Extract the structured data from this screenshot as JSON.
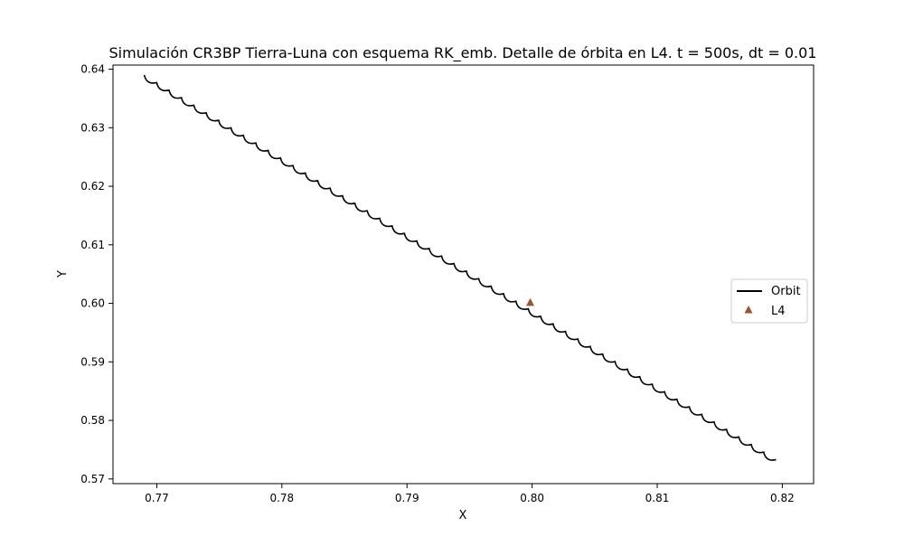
{
  "chart_data": {
    "type": "line",
    "title": "Simulación CR3BP Tierra-Luna con esquema RK_emb. Detalle de órbita en L4. t = 500s, dt = 0.01",
    "xlabel": "X",
    "ylabel": "Y",
    "xlim": [
      0.7665,
      0.8225
    ],
    "ylim": [
      0.5692,
      0.6407
    ],
    "xticks": [
      0.77,
      0.78,
      0.79,
      0.8,
      0.81,
      0.82
    ],
    "yticks": [
      0.57,
      0.58,
      0.59,
      0.6,
      0.61,
      0.62,
      0.63,
      0.64
    ],
    "grid": false,
    "legend_position": "center-right",
    "series": [
      {
        "name": "Orbit",
        "color": "#000000",
        "marker": "none",
        "path": {
          "start": [
            0.769,
            0.639
          ],
          "end": [
            0.8195,
            0.5733
          ],
          "arcs": 51,
          "arc_depth": 0.0008
        }
      },
      {
        "name": "L4",
        "color": "#a0522d",
        "marker": "triangle",
        "points": [
          [
            0.79985,
            0.6001
          ]
        ]
      }
    ]
  }
}
